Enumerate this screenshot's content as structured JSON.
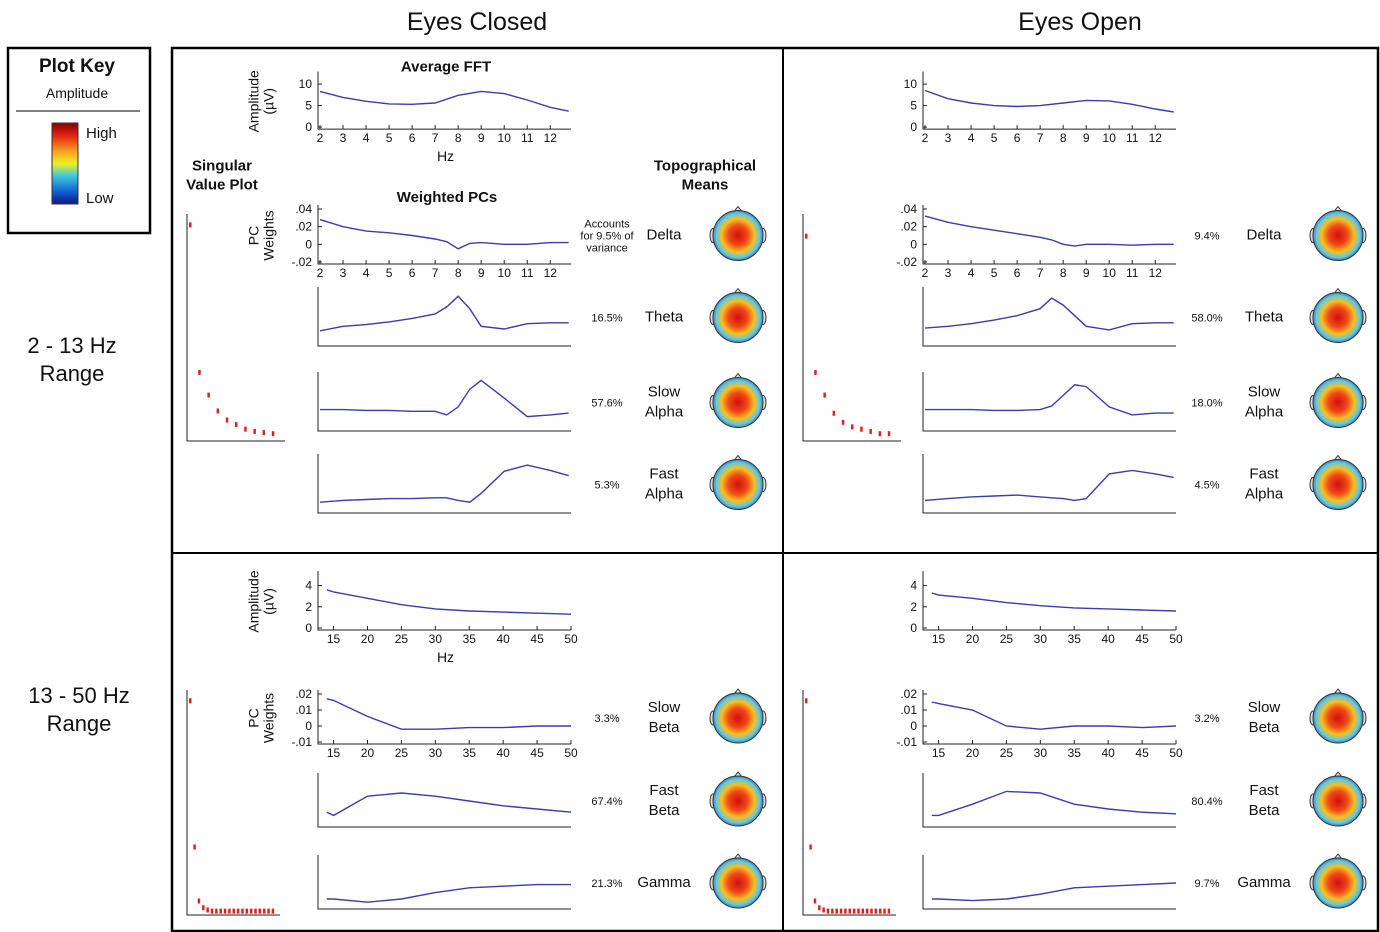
{
  "column_titles": [
    "Eyes Closed",
    "Eyes Open"
  ],
  "row_titles": [
    "2 - 13 Hz Range",
    "13 - 50 Hz Range"
  ],
  "plot_key": {
    "title": "Plot Key",
    "subtitle": "Amplitude",
    "high": "High",
    "low": "Low"
  },
  "headers": {
    "singular_value_plot": "Singular Value Plot",
    "weighted_pcs": "Weighted PCs",
    "topographical_means": "Topographical Means"
  },
  "chart_data": [
    {
      "type": "line",
      "title": "Average FFT",
      "ylabel": "Amplitude (µV)",
      "xlabel": "Hz",
      "color": "#3b3bb3",
      "x": [
        2,
        3,
        4,
        5,
        6,
        7,
        8,
        9,
        10,
        11,
        12,
        12.8
      ],
      "values": [
        8.3,
        6.9,
        6,
        5.4,
        5.3,
        5.6,
        7.4,
        8.3,
        7.8,
        6.3,
        4.6,
        3.7
      ],
      "xlim": [
        2,
        12.9
      ],
      "ylim": [
        0,
        12
      ],
      "xticks": [
        2,
        3,
        4,
        5,
        6,
        7,
        8,
        9,
        10,
        11,
        12
      ],
      "yticks": [
        0,
        5,
        10
      ]
    },
    {
      "type": "line",
      "title": "Delta",
      "annotation": "Accounts for 9.5% of variance",
      "ylabel": "PC Weights",
      "color": "#3b3bb3",
      "x": [
        2,
        3,
        4,
        5,
        6,
        7,
        7.5,
        8,
        8.5,
        9,
        10,
        11,
        12,
        12.8
      ],
      "values": [
        0.028,
        0.02,
        0.015,
        0.013,
        0.01,
        0.006,
        0.003,
        -0.005,
        0.001,
        0.002,
        0,
        0,
        0.002,
        0.002
      ],
      "xlim": [
        2,
        12.9
      ],
      "ylim": [
        -0.02,
        0.04
      ],
      "xticks": [
        2,
        3,
        4,
        5,
        6,
        7,
        8,
        9,
        10,
        11,
        12
      ],
      "yticks": [
        {
          "value": -0.02,
          "label": "-.02"
        },
        0,
        {
          "value": 0.02,
          "label": ".02"
        },
        {
          "value": 0.04,
          "label": ".04"
        }
      ]
    },
    {
      "type": "line",
      "title": "Theta",
      "annotation": "16.5%",
      "color": "#3b3bb3",
      "x": [
        2,
        3,
        4,
        5,
        6,
        7,
        7.5,
        8,
        8.5,
        9,
        10,
        11,
        12,
        12.8
      ],
      "values": [
        -0.005,
        0,
        0.002,
        0.005,
        0.009,
        0.014,
        0.022,
        0.034,
        0.02,
        0,
        -0.003,
        0.003,
        0.004,
        0.004
      ],
      "xlim": [
        2,
        12.9
      ],
      "ylim": [
        -0.02,
        0.04
      ]
    },
    {
      "type": "line",
      "title": "Slow Alpha",
      "annotation": "57.6%",
      "color": "#3b3bb3",
      "x": [
        2,
        3,
        4,
        5,
        6,
        7,
        7.5,
        8,
        8.5,
        9,
        10,
        11,
        12,
        12.8
      ],
      "values": [
        0.002,
        0.002,
        0.001,
        0.001,
        0,
        0,
        -0.004,
        0.005,
        0.025,
        0.035,
        0.015,
        -0.006,
        -0.004,
        -0.002
      ],
      "xlim": [
        2,
        12.9
      ],
      "ylim": [
        -0.02,
        0.04
      ]
    },
    {
      "type": "line",
      "title": "Fast Alpha",
      "annotation": "5.3%",
      "color": "#3b3bb3",
      "x": [
        2,
        3,
        4,
        5,
        6,
        7,
        7.5,
        8,
        8.5,
        9,
        10,
        11,
        12,
        12.8
      ],
      "values": [
        -0.01,
        -0.008,
        -0.007,
        -0.006,
        -0.006,
        -0.005,
        -0.005,
        -0.008,
        -0.01,
        0,
        0.025,
        0.032,
        0.026,
        0.02
      ],
      "xlim": [
        2,
        12.9
      ],
      "ylim": [
        -0.02,
        0.04
      ]
    },
    {
      "type": "scatter",
      "color": "#e02020",
      "values": [
        0.95,
        0.3,
        0.2,
        0.13,
        0.09,
        0.07,
        0.05,
        0.04,
        0.035,
        0.03
      ],
      "ylim": [
        0,
        1
      ]
    },
    {
      "type": "line",
      "color": "#3b3bb3",
      "x": [
        2,
        3,
        4,
        5,
        6,
        7,
        8,
        9,
        10,
        11,
        12,
        12.8
      ],
      "values": [
        8.5,
        6.6,
        5.6,
        5.0,
        4.8,
        5.0,
        5.6,
        6.2,
        6.1,
        5.3,
        4.2,
        3.5
      ],
      "xlim": [
        2,
        12.9
      ],
      "ylim": [
        0,
        12
      ],
      "xticks": [
        2,
        3,
        4,
        5,
        6,
        7,
        8,
        9,
        10,
        11,
        12
      ],
      "yticks": [
        0,
        5,
        10
      ]
    },
    {
      "type": "line",
      "title": "Delta",
      "annotation": "9.4%",
      "color": "#3b3bb3",
      "x": [
        2,
        3,
        4,
        5,
        6,
        7,
        7.5,
        8,
        8.5,
        9,
        10,
        11,
        12,
        12.8
      ],
      "values": [
        0.032,
        0.025,
        0.02,
        0.016,
        0.012,
        0.008,
        0.005,
        0.0,
        -0.002,
        0,
        0,
        -0.001,
        0,
        0
      ],
      "xlim": [
        2,
        12.9
      ],
      "ylim": [
        -0.02,
        0.04
      ],
      "xticks": [
        2,
        3,
        4,
        5,
        6,
        7,
        8,
        9,
        10,
        11,
        12
      ],
      "yticks": [
        {
          "value": -0.02,
          "label": "-.02"
        },
        0,
        {
          "value": 0.02,
          "label": ".02"
        },
        {
          "value": 0.04,
          "label": ".04"
        }
      ]
    },
    {
      "type": "line",
      "title": "Theta",
      "annotation": "58.0%",
      "color": "#3b3bb3",
      "x": [
        2,
        3,
        4,
        5,
        6,
        7,
        7.5,
        8,
        8.5,
        9,
        10,
        11,
        12,
        12.8
      ],
      "values": [
        -0.002,
        0,
        0.003,
        0.007,
        0.012,
        0.02,
        0.032,
        0.024,
        0.012,
        0.0,
        -0.004,
        0.003,
        0.004,
        0.004
      ],
      "xlim": [
        2,
        12.9
      ],
      "ylim": [
        -0.02,
        0.04
      ]
    },
    {
      "type": "line",
      "title": "Slow Alpha",
      "annotation": "18.0%",
      "color": "#3b3bb3",
      "x": [
        2,
        3,
        4,
        5,
        6,
        7,
        7.5,
        8,
        8.5,
        9,
        10,
        11,
        12,
        12.8
      ],
      "values": [
        0.002,
        0.002,
        0.002,
        0.001,
        0.001,
        0.002,
        0.006,
        0.018,
        0.03,
        0.028,
        0.005,
        -0.004,
        -0.002,
        -0.002
      ],
      "xlim": [
        2,
        12.9
      ],
      "ylim": [
        -0.02,
        0.04
      ]
    },
    {
      "type": "line",
      "title": "Fast Alpha",
      "annotation": "4.5%",
      "color": "#3b3bb3",
      "x": [
        2,
        3,
        4,
        5,
        6,
        7,
        7.5,
        8,
        8.5,
        9,
        10,
        11,
        12,
        12.8
      ],
      "values": [
        -0.008,
        -0.006,
        -0.004,
        -0.003,
        -0.002,
        -0.004,
        -0.005,
        -0.006,
        -0.008,
        -0.006,
        0.022,
        0.026,
        0.022,
        0.018
      ],
      "xlim": [
        2,
        12.9
      ],
      "ylim": [
        -0.02,
        0.04
      ]
    },
    {
      "type": "scatter",
      "color": "#e02020",
      "values": [
        0.9,
        0.3,
        0.2,
        0.12,
        0.08,
        0.06,
        0.05,
        0.04,
        0.03,
        0.03
      ],
      "ylim": [
        0,
        1
      ]
    },
    {
      "type": "line",
      "ylabel": "Amplitude (µV)",
      "xlabel": "Hz",
      "color": "#3b3bb3",
      "x": [
        14,
        15,
        20,
        25,
        30,
        35,
        40,
        45,
        50
      ],
      "values": [
        3.6,
        3.4,
        2.8,
        2.2,
        1.8,
        1.6,
        1.5,
        1.4,
        1.3
      ],
      "xlim": [
        13,
        50
      ],
      "ylim": [
        0,
        5
      ],
      "xticks": [
        15,
        20,
        25,
        30,
        35,
        40,
        45,
        50
      ],
      "yticks": [
        0,
        2,
        4
      ]
    },
    {
      "type": "line",
      "title": "Slow Beta",
      "annotation": "3.3%",
      "ylabel": "PC Weights",
      "color": "#3b3bb3",
      "x": [
        14,
        15,
        20,
        25,
        30,
        35,
        40,
        45,
        50
      ],
      "values": [
        0.017,
        0.016,
        0.006,
        -0.002,
        -0.002,
        -0.001,
        -0.001,
        0,
        0
      ],
      "xlim": [
        13,
        50
      ],
      "ylim": [
        -0.01,
        0.02
      ],
      "xticks": [
        15,
        20,
        25,
        30,
        35,
        40,
        45,
        50
      ],
      "yticks": [
        {
          "value": -0.01,
          "label": "-.01"
        },
        0,
        {
          "value": 0.01,
          "label": ".01"
        },
        {
          "value": 0.02,
          "label": ".02"
        }
      ]
    },
    {
      "type": "line",
      "title": "Fast Beta",
      "annotation": "67.4%",
      "color": "#3b3bb3",
      "x": [
        14,
        15,
        20,
        25,
        30,
        35,
        40,
        45,
        50
      ],
      "values": [
        -0.002,
        -0.004,
        0.008,
        0.01,
        0.008,
        0.005,
        0.002,
        0,
        -0.002
      ],
      "xlim": [
        13,
        50
      ],
      "ylim": [
        -0.01,
        0.02
      ]
    },
    {
      "type": "line",
      "title": "Gamma",
      "annotation": "21.3%",
      "color": "#3b3bb3",
      "x": [
        14,
        15,
        20,
        25,
        30,
        35,
        40,
        45,
        50
      ],
      "values": [
        -0.005,
        -0.005,
        -0.007,
        -0.005,
        -0.001,
        0.002,
        0.003,
        0.004,
        0.004
      ],
      "xlim": [
        13,
        50
      ],
      "ylim": [
        -0.01,
        0.02
      ]
    },
    {
      "type": "scatter",
      "color": "#e02020",
      "values": [
        0.95,
        0.3,
        0.06,
        0.03,
        0.02,
        0.015,
        0.015,
        0.015,
        0.015,
        0.015,
        0.015,
        0.015,
        0.015,
        0.015,
        0.015,
        0.015,
        0.015,
        0.015,
        0.015,
        0.015
      ],
      "ylim": [
        0,
        1
      ]
    },
    {
      "type": "line",
      "color": "#3b3bb3",
      "x": [
        14,
        15,
        20,
        25,
        30,
        35,
        40,
        45,
        50
      ],
      "values": [
        3.3,
        3.1,
        2.8,
        2.4,
        2.1,
        1.9,
        1.8,
        1.7,
        1.6
      ],
      "xlim": [
        13,
        50
      ],
      "ylim": [
        0,
        5
      ],
      "xticks": [
        15,
        20,
        25,
        30,
        35,
        40,
        45,
        50
      ],
      "yticks": [
        0,
        2,
        4
      ]
    },
    {
      "type": "line",
      "title": "Slow Beta",
      "annotation": "3.2%",
      "color": "#3b3bb3",
      "x": [
        14,
        15,
        20,
        25,
        30,
        35,
        40,
        45,
        50
      ],
      "values": [
        0.015,
        0.014,
        0.01,
        0,
        -0.002,
        0,
        0,
        -0.001,
        0
      ],
      "xlim": [
        13,
        50
      ],
      "ylim": [
        -0.01,
        0.02
      ],
      "xticks": [
        15,
        20,
        25,
        30,
        35,
        40,
        45,
        50
      ],
      "yticks": [
        {
          "value": -0.01,
          "label": "-.01"
        },
        0,
        {
          "value": 0.01,
          "label": ".01"
        },
        {
          "value": 0.02,
          "label": ".02"
        }
      ]
    },
    {
      "type": "line",
      "title": "Fast Beta",
      "annotation": "80.4%",
      "color": "#3b3bb3",
      "x": [
        14,
        15,
        20,
        25,
        30,
        35,
        40,
        45,
        50
      ],
      "values": [
        -0.004,
        -0.004,
        0.003,
        0.011,
        0.01,
        0.003,
        0,
        -0.002,
        -0.003
      ],
      "xlim": [
        13,
        50
      ],
      "ylim": [
        -0.01,
        0.02
      ]
    },
    {
      "type": "line",
      "title": "Gamma",
      "annotation": "9.7%",
      "color": "#3b3bb3",
      "x": [
        14,
        15,
        20,
        25,
        30,
        35,
        40,
        45,
        50
      ],
      "values": [
        -0.005,
        -0.005,
        -0.006,
        -0.005,
        -0.002,
        0.002,
        0.003,
        0.004,
        0.005
      ],
      "xlim": [
        13,
        50
      ],
      "ylim": [
        -0.01,
        0.02
      ]
    },
    {
      "type": "scatter",
      "color": "#e02020",
      "values": [
        0.95,
        0.3,
        0.06,
        0.03,
        0.02,
        0.015,
        0.015,
        0.015,
        0.015,
        0.015,
        0.015,
        0.015,
        0.015,
        0.015,
        0.015,
        0.015,
        0.015,
        0.015,
        0.015,
        0.015
      ],
      "ylim": [
        0,
        1
      ]
    }
  ]
}
